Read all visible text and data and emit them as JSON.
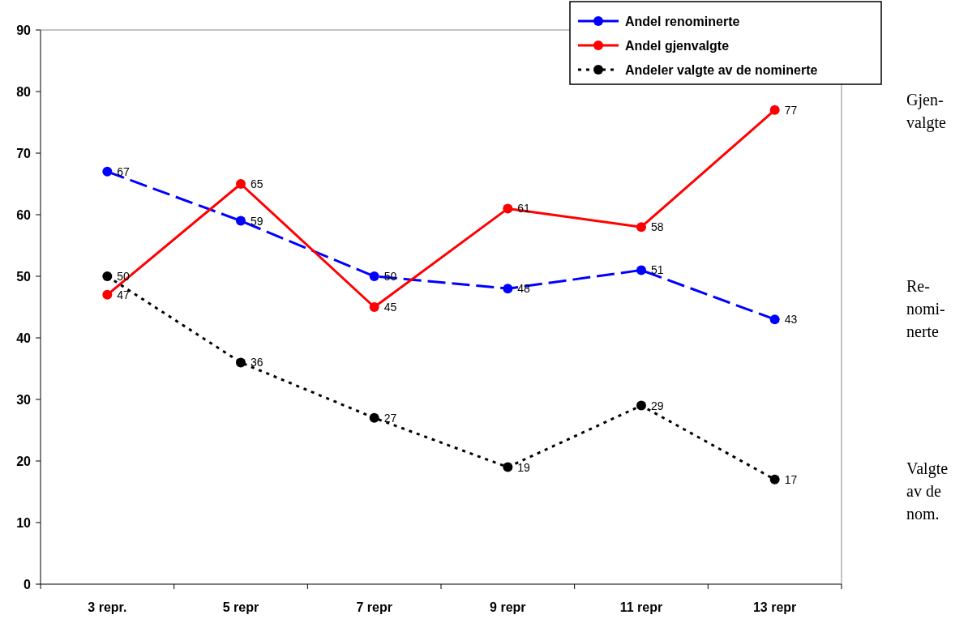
{
  "chart_data": {
    "type": "line",
    "categories": [
      "3 repr.",
      "5 repr",
      "7 repr",
      "9 repr",
      "11 repr",
      "13 repr"
    ],
    "series": [
      {
        "name": "Andel renominerte",
        "color": "#0000ff",
        "values": [
          67,
          59,
          50,
          48,
          51,
          43
        ],
        "line_style": "dashed"
      },
      {
        "name": "Andel gjenvalgte",
        "color": "#ff0000",
        "values": [
          47,
          65,
          45,
          61,
          58,
          77
        ],
        "line_style": "solid"
      },
      {
        "name": "Andeler valgte av de nominerte",
        "color": "#000000",
        "values": [
          50,
          36,
          27,
          19,
          29,
          17
        ],
        "line_style": "dotted"
      }
    ],
    "ylim": [
      0,
      90
    ],
    "yticks": [
      0,
      10,
      20,
      30,
      40,
      50,
      60,
      70,
      80,
      90
    ],
    "marker": "circle",
    "data_labels": true,
    "grid": false,
    "legend": "top right",
    "annotations": [
      "Gjen-\nvalgte",
      "Re-\nnomi-\nnerte",
      "Valgte\nav de\nnom."
    ]
  }
}
